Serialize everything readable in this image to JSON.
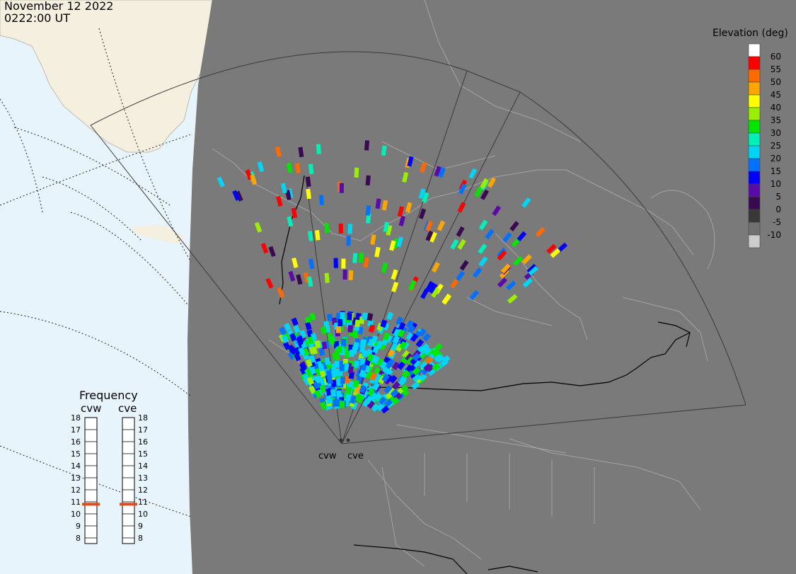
{
  "header": {
    "date": "November 12 2022",
    "time": "0222:00 UT"
  },
  "colors": {
    "ocean": "#e8f4fb",
    "land_outside": "#f4efdf",
    "night": "#7a7a7a",
    "border": "#000000",
    "coast": "#a4a4a4",
    "frequency_marker": "#e04a1c"
  },
  "elevation_legend": {
    "title": "Elevation (deg)",
    "entries": [
      {
        "label": "60",
        "color": "#ffffff"
      },
      {
        "label": "55",
        "color": "#ff0000"
      },
      {
        "label": "50",
        "color": "#ff6a00"
      },
      {
        "label": "45",
        "color": "#ffa500"
      },
      {
        "label": "40",
        "color": "#ffff00"
      },
      {
        "label": "35",
        "color": "#9aef00"
      },
      {
        "label": "30",
        "color": "#00e600"
      },
      {
        "label": "25",
        "color": "#00f0b8"
      },
      {
        "label": "20",
        "color": "#00d5f5"
      },
      {
        "label": "15",
        "color": "#0072ff"
      },
      {
        "label": "10",
        "color": "#0000ff"
      },
      {
        "label": "5",
        "color": "#5a0aa8"
      },
      {
        "label": "0",
        "color": "#3a0a50"
      },
      {
        "label": "-5",
        "color": "#383838"
      },
      {
        "label": "-10",
        "color": "#707070"
      },
      {
        "label": "",
        "color": "#cccccc"
      }
    ]
  },
  "frequency": {
    "title": "Frequency",
    "radars": [
      {
        "name": "cvw",
        "frequency_mhz": 10.8
      },
      {
        "name": "cve",
        "frequency_mhz": 10.8
      }
    ],
    "ticks": [
      "18",
      "17",
      "16",
      "15",
      "14",
      "13",
      "12",
      "11",
      "10",
      "9",
      "8"
    ]
  },
  "stations": [
    {
      "name": "cvw"
    },
    {
      "name": "cve"
    }
  ]
}
